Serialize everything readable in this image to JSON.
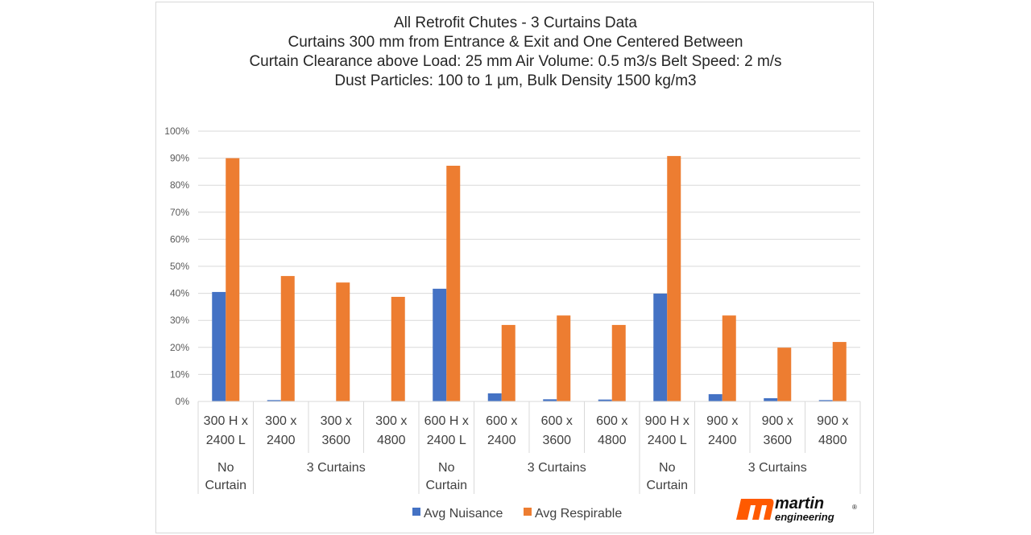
{
  "chart_data": {
    "type": "bar",
    "title_lines": [
      "All Retrofit Chutes - 3 Curtains Data",
      "Curtains 300 mm from Entrance & Exit and One Centered Between",
      "Curtain Clearance above Load: 25 mm  Air Volume:  0.5 m3/s  Belt Speed:  2 m/s",
      "Dust Particles: 100 to 1 µm, Bulk Density 1500 kg/m3"
    ],
    "categories": [
      [
        "300 H x",
        "2400 L"
      ],
      [
        "300 x",
        "2400"
      ],
      [
        "300 x",
        "3600"
      ],
      [
        "300 x",
        "4800"
      ],
      [
        "600 H x",
        "2400 L"
      ],
      [
        "600 x",
        "2400"
      ],
      [
        "600 x",
        "3600"
      ],
      [
        "600 x",
        "4800"
      ],
      [
        "900 H x",
        "2400 L"
      ],
      [
        "900 x",
        "2400"
      ],
      [
        "900 x",
        "3600"
      ],
      [
        "900 x",
        "4800"
      ]
    ],
    "groups": [
      {
        "label": [
          "No",
          "Curtain"
        ],
        "span": 1
      },
      {
        "label": [
          "3 Curtains"
        ],
        "span": 3
      },
      {
        "label": [
          "No",
          "Curtain"
        ],
        "span": 1
      },
      {
        "label": [
          "3 Curtains"
        ],
        "span": 3
      },
      {
        "label": [
          "No",
          "Curtain"
        ],
        "span": 1
      },
      {
        "label": [
          "3 Curtains"
        ],
        "span": 3
      }
    ],
    "series": [
      {
        "name": "Avg Nuisance",
        "color": "#4472c4",
        "values": [
          40.5,
          0.5,
          0,
          0,
          41.7,
          3.0,
          0.8,
          0.7,
          39.9,
          2.7,
          1.2,
          0.5
        ]
      },
      {
        "name": "Avg Respirable",
        "color": "#ed7d31",
        "values": [
          90,
          46.4,
          44,
          38.7,
          87.2,
          28.3,
          31.8,
          28.3,
          90.8,
          31.8,
          19.9,
          22
        ]
      }
    ],
    "ylim": [
      0,
      100
    ],
    "yticks": [
      "0%",
      "10%",
      "20%",
      "30%",
      "40%",
      "50%",
      "60%",
      "70%",
      "80%",
      "90%",
      "100%"
    ],
    "grid": true,
    "legend": "bottom"
  },
  "logo": {
    "text": "martin engineering",
    "color": "#ff5a00"
  }
}
